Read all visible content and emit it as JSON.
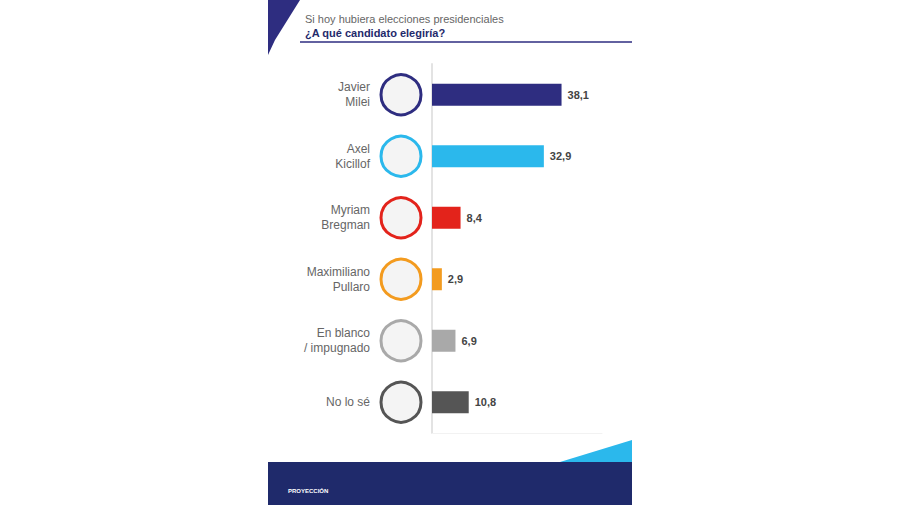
{
  "chart_data": {
    "type": "bar",
    "orientation": "horizontal",
    "subtitle": "Si hoy hubiera elecciones presidenciales",
    "title": "¿A qué candidato elegiría?",
    "source": "PROYECCIÓN",
    "categories": [
      "Javier Milei",
      "Axel Kicillof",
      "Myriam Bregman",
      "Maximiliano Pullaro",
      "En blanco / impugnado",
      "No lo sé"
    ],
    "values": [
      38.1,
      32.9,
      8.4,
      2.9,
      6.9,
      10.8
    ],
    "value_labels": [
      "38,1",
      "32,9",
      "8,4",
      "2,9",
      "6,9",
      "10,8"
    ],
    "colors": [
      "#2e2d80",
      "#2bb8ec",
      "#e3231b",
      "#f39b1f",
      "#a9a9a9",
      "#555555"
    ],
    "xlim": [
      0,
      50
    ],
    "data_labels": true,
    "tick_labels": "y",
    "grid": false
  }
}
